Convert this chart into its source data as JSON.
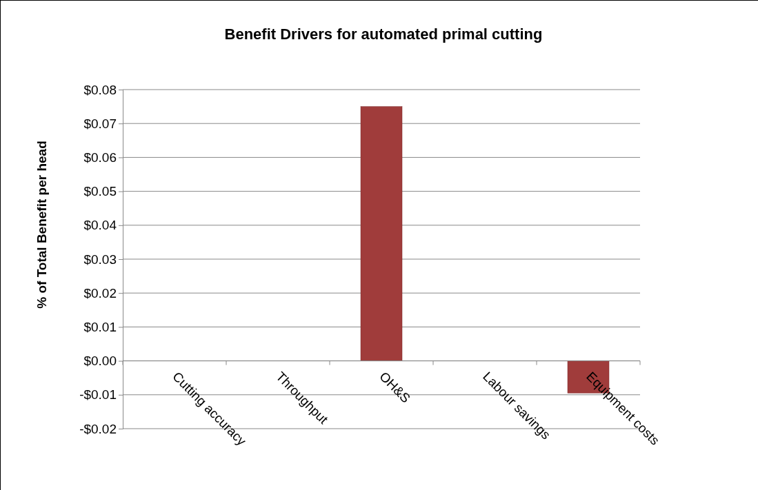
{
  "chart_data": {
    "type": "bar",
    "title": "Benefit Drivers for automated primal cutting",
    "ylabel": "% of Total Benefit per head",
    "categories": [
      "Cutting accuracy",
      "Throughput",
      "OH&S",
      "Labour savings",
      "Equipment costs"
    ],
    "values": [
      0,
      0,
      0.075,
      0,
      -0.0095
    ],
    "color": "#a03c3b",
    "ylim": [
      -0.02,
      0.08
    ],
    "yticks": [
      {
        "value": -0.02,
        "label": "-$0.02"
      },
      {
        "value": -0.01,
        "label": "-$0.01"
      },
      {
        "value": 0,
        "label": "$0.00"
      },
      {
        "value": 0.01,
        "label": "$0.01"
      },
      {
        "value": 0.02,
        "label": "$0.02"
      },
      {
        "value": 0.03,
        "label": "$0.03"
      },
      {
        "value": 0.04,
        "label": "$0.04"
      },
      {
        "value": 0.05,
        "label": "$0.05"
      },
      {
        "value": 0.06,
        "label": "$0.06"
      },
      {
        "value": 0.07,
        "label": "$0.07"
      },
      {
        "value": 0.08,
        "label": "$0.08"
      }
    ],
    "grid": "y"
  }
}
